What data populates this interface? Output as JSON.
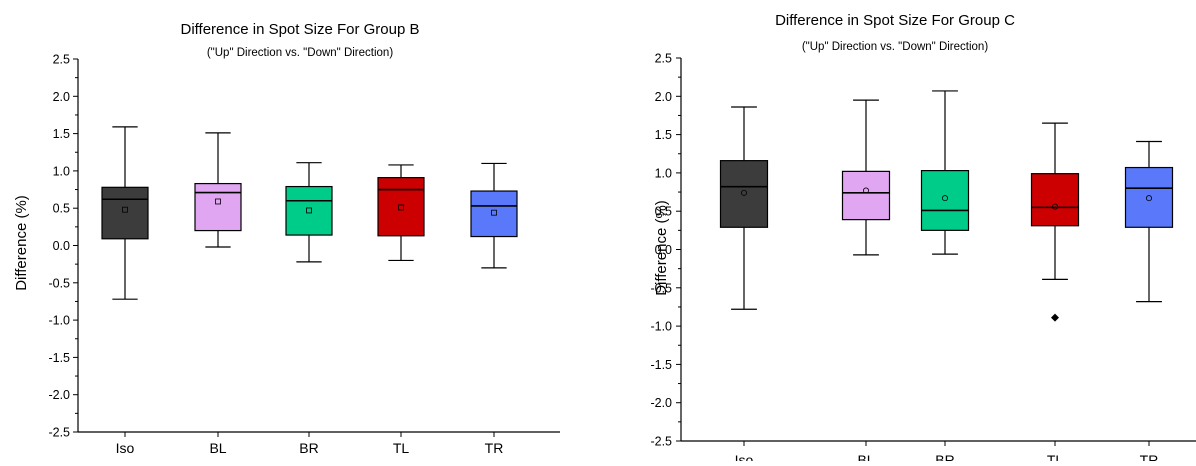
{
  "chart_data": [
    {
      "type": "box",
      "title": "Difference in Spot Size For Group B",
      "subtitle": "(\"Up\" Direction vs. \"Down\" Direction)",
      "ylabel": "Difference (%)",
      "xlabel": "",
      "ylim": [
        -2.5,
        2.5
      ],
      "yticks": [
        2.5,
        2.0,
        1.5,
        1.0,
        0.5,
        0.0,
        -0.5,
        -1.0,
        -1.5,
        -2.0,
        -2.5
      ],
      "ytick_labels": [
        "2.5",
        "2.0",
        "1.5",
        "1.0",
        "0.5",
        "0.0",
        "-0.5",
        "-1.0",
        "-1.5",
        "-2.0",
        "-2.5"
      ],
      "grid": false,
      "categories": [
        "Iso",
        "BL",
        "BR",
        "TL",
        "TR"
      ],
      "colors": [
        "#3c3c3c",
        "#e0a6f2",
        "#00cc8a",
        "#cc0000",
        "#5a79fa"
      ],
      "boxes": [
        {
          "whisker_low": -0.72,
          "q1": 0.09,
          "median": 0.62,
          "q3": 0.78,
          "whisker_high": 1.59,
          "mean": 0.48,
          "outliers": []
        },
        {
          "whisker_low": -0.02,
          "q1": 0.2,
          "median": 0.71,
          "q3": 0.83,
          "whisker_high": 1.51,
          "mean": 0.59,
          "outliers": []
        },
        {
          "whisker_low": -0.22,
          "q1": 0.14,
          "median": 0.6,
          "q3": 0.79,
          "whisker_high": 1.11,
          "mean": 0.47,
          "outliers": []
        },
        {
          "whisker_low": -0.2,
          "q1": 0.13,
          "median": 0.75,
          "q3": 0.91,
          "whisker_high": 1.08,
          "mean": 0.51,
          "outliers": []
        },
        {
          "whisker_low": -0.3,
          "q1": 0.12,
          "median": 0.53,
          "q3": 0.73,
          "whisker_high": 1.1,
          "mean": 0.44,
          "outliers": []
        }
      ]
    },
    {
      "type": "box",
      "title": "Difference in Spot Size For Group C",
      "subtitle": "(\"Up\" Direction vs. \"Down\" Direction)",
      "ylabel": "Difference (%)",
      "xlabel": "",
      "ylim": [
        -2.5,
        2.5
      ],
      "yticks": [
        2.5,
        2.0,
        1.5,
        1.0,
        0.5,
        0.0,
        -0.5,
        -1.0,
        -1.5,
        -2.0,
        -2.5
      ],
      "ytick_labels": [
        "2.5",
        "2.0",
        "1.5",
        "1.0",
        "0.5",
        "0.0",
        "-0.5",
        "-1.0",
        "-1.5",
        "-2.0",
        "-2.5"
      ],
      "grid": false,
      "categories": [
        "Iso",
        "BL",
        "BR",
        "TL",
        "TR"
      ],
      "colors": [
        "#3c3c3c",
        "#e0a6f2",
        "#00cc8a",
        "#cc0000",
        "#5a79fa"
      ],
      "boxes": [
        {
          "whisker_low": -0.78,
          "q1": 0.29,
          "median": 0.82,
          "q3": 1.16,
          "whisker_high": 1.86,
          "mean": 0.74,
          "outliers": []
        },
        {
          "whisker_low": -0.07,
          "q1": 0.39,
          "median": 0.74,
          "q3": 1.02,
          "whisker_high": 1.95,
          "mean": 0.77,
          "outliers": []
        },
        {
          "whisker_low": -0.06,
          "q1": 0.25,
          "median": 0.51,
          "q3": 1.03,
          "whisker_high": 2.07,
          "mean": 0.67,
          "outliers": []
        },
        {
          "whisker_low": -0.39,
          "q1": 0.31,
          "median": 0.55,
          "q3": 0.99,
          "whisker_high": 1.65,
          "mean": 0.56,
          "outliers": [
            -0.89
          ]
        },
        {
          "whisker_low": -0.68,
          "q1": 0.29,
          "median": 0.8,
          "q3": 1.07,
          "whisker_high": 1.41,
          "mean": 0.67,
          "outliers": []
        }
      ]
    }
  ]
}
